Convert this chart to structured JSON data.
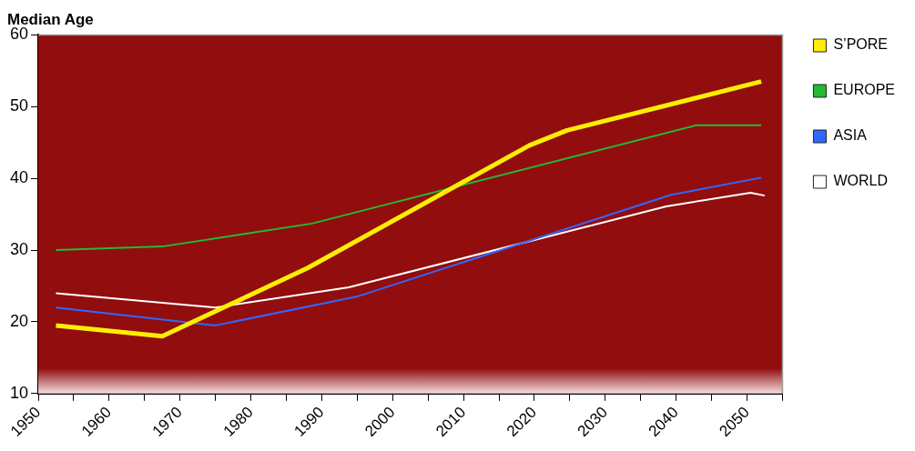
{
  "chart_data": {
    "type": "line",
    "title": "Median Age",
    "xlim": [
      1950,
      2055
    ],
    "xticks": [
      {
        "value": 1950,
        "label": "1950"
      },
      {
        "value": 1955,
        "label": null
      },
      {
        "value": 1960,
        "label": "1960"
      },
      {
        "value": 1965,
        "label": null
      },
      {
        "value": 1970,
        "label": "1970"
      },
      {
        "value": 1975,
        "label": null
      },
      {
        "value": 1980,
        "label": "1980"
      },
      {
        "value": 1985,
        "label": null
      },
      {
        "value": 1990,
        "label": "1990"
      },
      {
        "value": 1995,
        "label": null
      },
      {
        "value": 2000,
        "label": "2000"
      },
      {
        "value": 2005,
        "label": null
      },
      {
        "value": 2010,
        "label": "2010"
      },
      {
        "value": 2015,
        "label": null
      },
      {
        "value": 2020,
        "label": "2020"
      },
      {
        "value": 2025,
        "label": null
      },
      {
        "value": 2030,
        "label": "2030"
      },
      {
        "value": 2035,
        "label": null
      },
      {
        "value": 2040,
        "label": "2040"
      },
      {
        "value": 2045,
        "label": null
      },
      {
        "value": 2050,
        "label": "2050"
      },
      {
        "value": 2055,
        "label": null
      }
    ],
    "ylim": [
      10,
      60
    ],
    "yticks": [
      10,
      20,
      30,
      40,
      50,
      60
    ],
    "legend": "right",
    "marker": "none",
    "line_style": "solid",
    "series": [
      {
        "name": "S’PORE",
        "color": "#ffee00",
        "x": [
          1952.5,
          1967.5,
          1988,
          2019.3,
          2024.6,
          2052
        ],
        "values": [
          19.5,
          18,
          27.5,
          44.6,
          46.7,
          53.5
        ]
      },
      {
        "name": "EUROPE",
        "color": "#22bb33",
        "x": [
          1952.5,
          1967.5,
          1988.6,
          2042.8,
          2052
        ],
        "values": [
          30,
          30.5,
          33.7,
          47.4,
          47.4
        ]
      },
      {
        "name": "ASIA",
        "color": "#3366ff",
        "x": [
          1952.5,
          1975,
          1994.9,
          2039.3,
          2052
        ],
        "values": [
          22,
          19.5,
          23.5,
          37.7,
          40.1
        ]
      },
      {
        "name": "WORLD",
        "color": "#ffffff",
        "x": [
          1952.5,
          1975,
          1993.8,
          2038.6,
          2050.5,
          2052.5
        ],
        "values": [
          24,
          22,
          24.8,
          36.1,
          38,
          37.6
        ]
      }
    ]
  }
}
